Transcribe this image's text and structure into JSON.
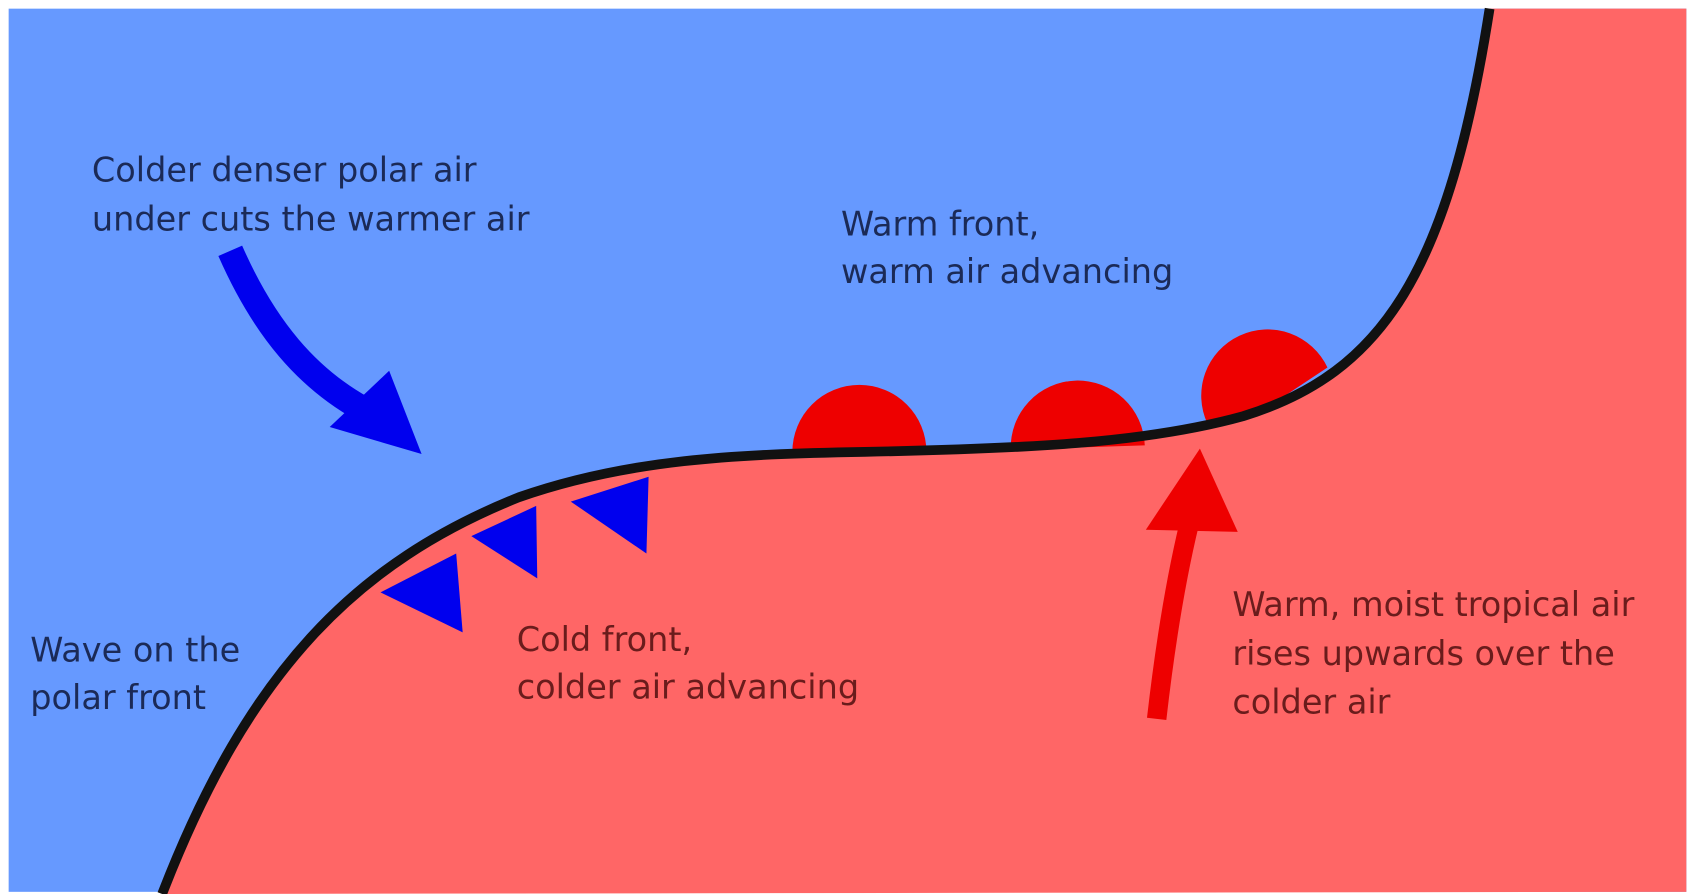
{
  "labels": {
    "polar_air": [
      "Colder denser polar air",
      "under cuts the warmer air"
    ],
    "warm_front": [
      "Warm front,",
      "warm air advancing"
    ],
    "wave": [
      "Wave on the",
      "polar front"
    ],
    "cold_front": [
      "Cold front,",
      "colder air advancing"
    ],
    "tropical_air": [
      "Warm, moist tropical air",
      "rises upwards over the",
      "colder air"
    ]
  }
}
